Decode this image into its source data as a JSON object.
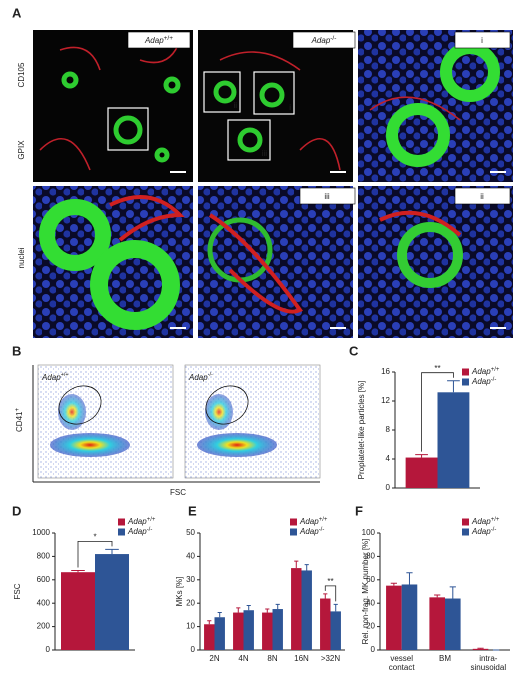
{
  "panel_a": {
    "label": "A",
    "stains": [
      "CD105",
      "GPIX",
      "nuclei"
    ],
    "genotypes": [
      {
        "gene": "Adap",
        "sup": "+/+"
      },
      {
        "gene": "Adap",
        "sup": "-/-"
      }
    ],
    "zoom_tags": [
      "i",
      "iii",
      "ii"
    ],
    "insets": [
      "ii",
      "i",
      "iii"
    ]
  },
  "panel_b": {
    "label": "B",
    "genotypes": [
      {
        "gene": "Adap",
        "sup": "+/+"
      },
      {
        "gene": "Adap",
        "sup": "-/-"
      }
    ],
    "y_label": "CD41",
    "y_label_sup": "+",
    "x_label": "FSC"
  },
  "chart_data": [
    {
      "type": "bar",
      "panel": "C",
      "y_label": "Proplatelet-like particles [%]",
      "categories": [
        null
      ],
      "series": [
        {
          "name": "Adap",
          "sup": "+/+",
          "color": "#b5173b",
          "values": [
            4.2
          ],
          "errors": [
            0.4
          ]
        },
        {
          "name": "Adap",
          "sup": "-/-",
          "color": "#2e5596",
          "values": [
            13.2
          ],
          "errors": [
            1.6
          ]
        }
      ],
      "ylim": [
        0,
        16
      ],
      "yticks": [
        0,
        4,
        8,
        12,
        16
      ],
      "legend": "top-right",
      "annotations": [
        "**"
      ]
    },
    {
      "type": "bar",
      "panel": "D",
      "y_label": "FSC",
      "categories": [
        null
      ],
      "series": [
        {
          "name": "Adap",
          "sup": "+/+",
          "color": "#b5173b",
          "values": [
            665
          ],
          "errors": [
            15
          ]
        },
        {
          "name": "Adap",
          "sup": "-/-",
          "color": "#2e5596",
          "values": [
            820
          ],
          "errors": [
            40
          ]
        }
      ],
      "ylim": [
        0,
        1000
      ],
      "yticks": [
        0,
        200,
        400,
        600,
        800,
        1000
      ],
      "legend": "top-right",
      "annotations": [
        "*"
      ]
    },
    {
      "type": "bar",
      "panel": "E",
      "y_label": "MKs [%]",
      "categories": [
        "2N",
        "4N",
        "8N",
        "16N",
        ">32N"
      ],
      "series": [
        {
          "name": "Adap",
          "sup": "+/+",
          "color": "#b5173b",
          "values": [
            11,
            16,
            16,
            35,
            22
          ],
          "errors": [
            1.5,
            2,
            1.5,
            3,
            2
          ]
        },
        {
          "name": "Adap",
          "sup": "-/-",
          "color": "#2e5596",
          "values": [
            14,
            17,
            17.5,
            34,
            16.5
          ],
          "errors": [
            2,
            2,
            2,
            2.5,
            3
          ]
        }
      ],
      "ylim": [
        0,
        50
      ],
      "yticks": [
        0,
        10,
        20,
        30,
        40,
        50
      ],
      "legend": "top-right",
      "annotations": [
        "**"
      ]
    },
    {
      "type": "bar",
      "panel": "F",
      "y_label": "Rel. non-frag. MK number [%]",
      "categories": [
        [
          "vessel",
          "contact"
        ],
        [
          "BM"
        ],
        [
          "intra-",
          "sinusoidal"
        ]
      ],
      "series": [
        {
          "name": "Adap",
          "sup": "+/+",
          "color": "#b5173b",
          "values": [
            55,
            45,
            1
          ],
          "errors": [
            2,
            2,
            0.5
          ]
        },
        {
          "name": "Adap",
          "sup": "-/-",
          "color": "#2e5596",
          "values": [
            56,
            44,
            0
          ],
          "errors": [
            10,
            10,
            0
          ]
        }
      ],
      "ylim": [
        0,
        100
      ],
      "yticks": [
        0,
        20,
        40,
        60,
        80,
        100
      ],
      "legend": "top-right"
    }
  ]
}
